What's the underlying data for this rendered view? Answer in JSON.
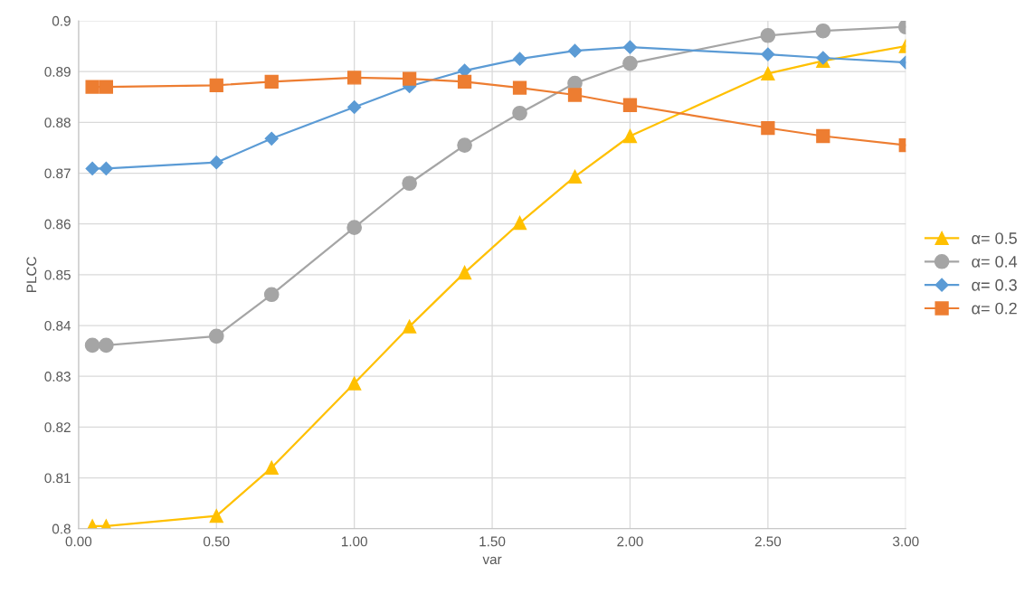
{
  "chart_data": {
    "type": "line",
    "xlabel": "var",
    "ylabel": "PLCC",
    "x": [
      0.05,
      0.1,
      0.5,
      0.7,
      1.0,
      1.2,
      1.4,
      1.6,
      1.8,
      2.0,
      2.5,
      2.7,
      3.0
    ],
    "series": [
      {
        "name": "α= 0.5",
        "color": "#ffc000",
        "marker": "triangle",
        "values": [
          0.8005,
          0.8005,
          0.8025,
          0.812,
          0.8286,
          0.8398,
          0.8504,
          0.8602,
          0.8693,
          0.8773,
          0.8896,
          0.8921,
          0.895
        ]
      },
      {
        "name": "α= 0.4",
        "color": "#a5a5a5",
        "marker": "circle",
        "values": [
          0.8361,
          0.8361,
          0.8379,
          0.8461,
          0.8593,
          0.868,
          0.8755,
          0.8818,
          0.8877,
          0.8916,
          0.8971,
          0.898,
          0.8988
        ]
      },
      {
        "name": "α= 0.3",
        "color": "#5b9bd5",
        "marker": "diamond",
        "values": [
          0.8709,
          0.8709,
          0.8721,
          0.8768,
          0.883,
          0.8871,
          0.8902,
          0.8925,
          0.8941,
          0.8948,
          0.8934,
          0.8927,
          0.8918
        ]
      },
      {
        "name": "α= 0.2",
        "color": "#ed7d31",
        "marker": "square",
        "values": [
          0.887,
          0.887,
          0.8873,
          0.888,
          0.8888,
          0.8886,
          0.888,
          0.8868,
          0.8854,
          0.8834,
          0.8789,
          0.8773,
          0.8755
        ]
      }
    ],
    "xlim": [
      0,
      3
    ],
    "xticks": [
      {
        "value": 0,
        "label": "0.00"
      },
      {
        "value": 0.5,
        "label": "0.50"
      },
      {
        "value": 1,
        "label": "1.00"
      },
      {
        "value": 1.5,
        "label": "1.50"
      },
      {
        "value": 2,
        "label": "2.00"
      },
      {
        "value": 2.5,
        "label": "2.50"
      },
      {
        "value": 3,
        "label": "3.00"
      }
    ],
    "ylim": [
      0.8,
      0.9
    ],
    "yticks": [
      0.8,
      0.81,
      0.82,
      0.83,
      0.84,
      0.85,
      0.86,
      0.87,
      0.88,
      0.89,
      0.9
    ],
    "grid": true,
    "legend": "right",
    "line_style": "solid"
  }
}
